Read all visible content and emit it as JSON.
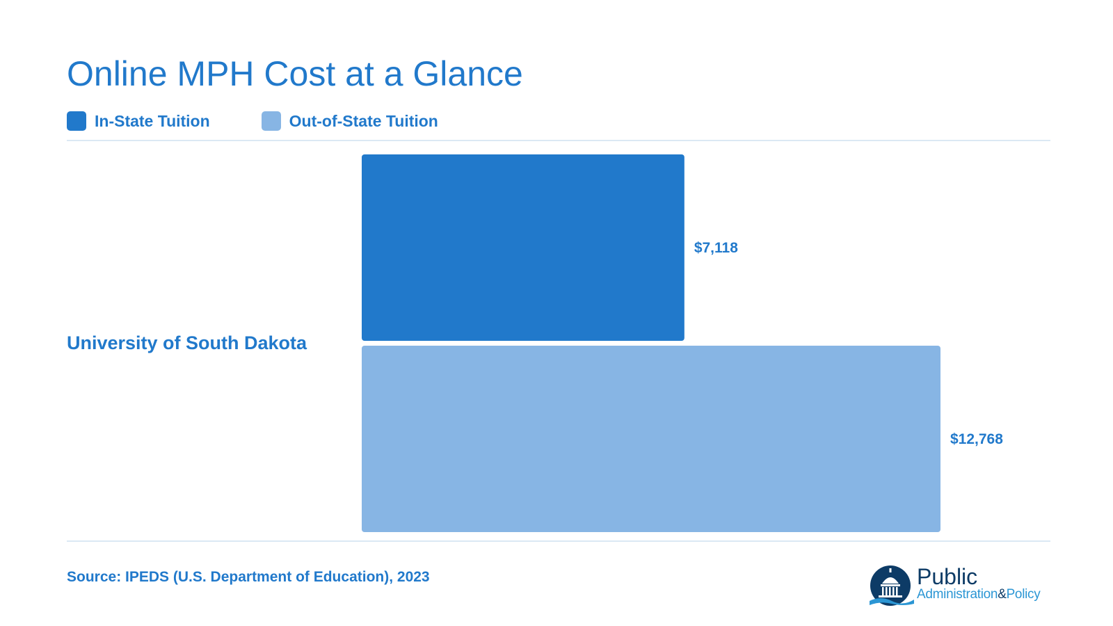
{
  "title": "Online MPH Cost at a Glance",
  "colors": {
    "in_state": "#2179cb",
    "out_of_state": "#87b5e4",
    "text": "#2179cb",
    "rule": "#dbe8f4"
  },
  "legend": [
    {
      "label": "In-State Tuition",
      "color": "#2179cb"
    },
    {
      "label": "Out-of-State Tuition",
      "color": "#87b5e4"
    }
  ],
  "chart_data": {
    "type": "bar",
    "orientation": "horizontal",
    "title": "Online MPH Cost at a Glance",
    "categories": [
      "University of South Dakota"
    ],
    "series": [
      {
        "name": "In-State Tuition",
        "values": [
          7118
        ],
        "labels": [
          "$7,118"
        ],
        "color": "#2179cb"
      },
      {
        "name": "Out-of-State Tuition",
        "values": [
          12768
        ],
        "labels": [
          "$12,768"
        ],
        "color": "#87b5e4"
      }
    ],
    "xlim": [
      0,
      12768
    ],
    "grid": false,
    "legend_position": "top-left"
  },
  "source": "Source: IPEDS (U.S. Department of Education), 2023",
  "logo": {
    "name": "capitol-dome-icon",
    "line1": "Public",
    "line2": "Administration",
    "amp": "&",
    "line3": "Policy"
  }
}
